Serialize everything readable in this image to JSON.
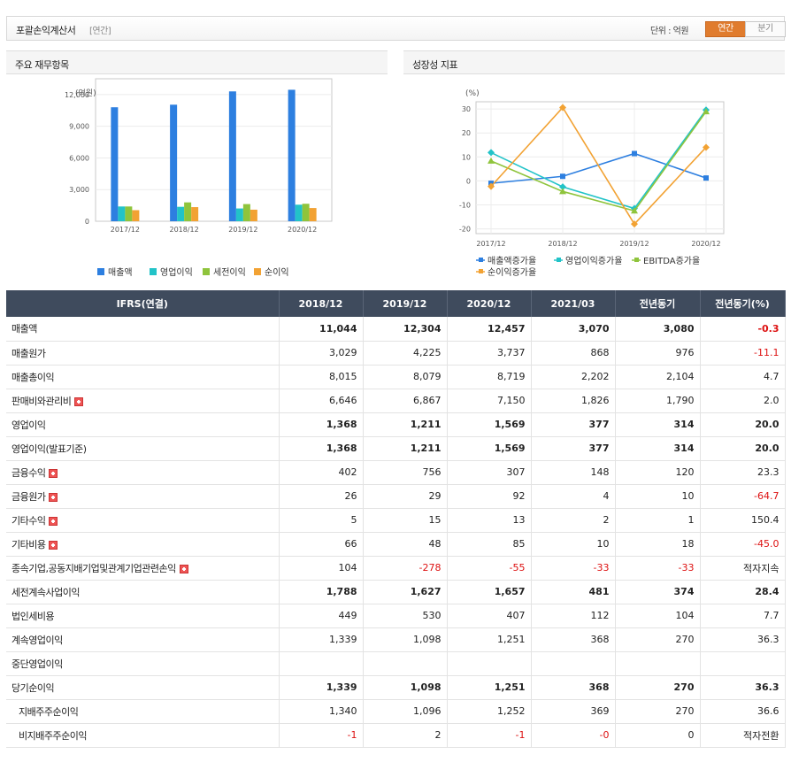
{
  "header": {
    "title": "포괄손익계산서",
    "subtitle": "[연간]",
    "unit_label": "단위 : 억원",
    "tab_annual": "연간",
    "tab_quarter": "분기"
  },
  "charts": {
    "left_title": "주요 재무항목",
    "right_title": "성장성 지표"
  },
  "chart_data": [
    {
      "type": "bar",
      "ylabel": "(억원)",
      "categories": [
        "2017/12",
        "2018/12",
        "2019/12",
        "2020/12"
      ],
      "y_ticks": [
        "0",
        "3,000",
        "6,000",
        "9,000",
        "12,000"
      ],
      "ylim": [
        0,
        13500
      ],
      "series": [
        {
          "name": "매출액",
          "color": "#2d7fe0",
          "values": [
            10800,
            11044,
            12304,
            12457
          ]
        },
        {
          "name": "영업이익",
          "color": "#22c3c8",
          "values": [
            1400,
            1368,
            1211,
            1569
          ]
        },
        {
          "name": "세전이익",
          "color": "#8fc43c",
          "values": [
            1400,
            1788,
            1627,
            1657
          ]
        },
        {
          "name": "순이익",
          "color": "#f2a233",
          "values": [
            1050,
            1339,
            1098,
            1251
          ]
        }
      ],
      "legend": "bottom"
    },
    {
      "type": "line",
      "ylabel": "(%)",
      "categories": [
        "2017/12",
        "2018/12",
        "2019/12",
        "2020/12"
      ],
      "y_ticks": [
        "-20",
        "-10",
        "0",
        "10",
        "20",
        "30"
      ],
      "ylim": [
        -22,
        33
      ],
      "series": [
        {
          "name": "매출액증가율",
          "color": "#2d7fe0",
          "marker": "square",
          "values": [
            -1,
            1.9,
            11.4,
            1.2
          ]
        },
        {
          "name": "영업이익증가율",
          "color": "#22c3c8",
          "marker": "diamond",
          "values": [
            11.8,
            -2.5,
            -11.5,
            29.6
          ]
        },
        {
          "name": "EBITDA증가율",
          "color": "#8fc43c",
          "marker": "triangle",
          "values": [
            8.3,
            -4.4,
            -12.5,
            28.9
          ]
        },
        {
          "name": "순이익증가율",
          "color": "#f2a233",
          "marker": "diamond",
          "values": [
            -2.3,
            30.6,
            -18.0,
            14.0
          ]
        }
      ],
      "legend": "bottom"
    }
  ],
  "table": {
    "columns": [
      "IFRS(연결)",
      "2018/12",
      "2019/12",
      "2020/12",
      "2021/03",
      "전년동기",
      "전년동기(%)"
    ],
    "rows": [
      {
        "label": "매출액",
        "values": [
          "11,044",
          "12,304",
          "12,457",
          "3,070",
          "3,080",
          "-0.3"
        ],
        "bold": true,
        "expand": false,
        "indent": false
      },
      {
        "label": "매출원가",
        "values": [
          "3,029",
          "4,225",
          "3,737",
          "868",
          "976",
          "-11.1"
        ],
        "bold": false,
        "expand": false,
        "indent": false
      },
      {
        "label": "매출총이익",
        "values": [
          "8,015",
          "8,079",
          "8,719",
          "2,202",
          "2,104",
          "4.7"
        ],
        "bold": false,
        "expand": false,
        "indent": false
      },
      {
        "label": "판매비와관리비",
        "values": [
          "6,646",
          "6,867",
          "7,150",
          "1,826",
          "1,790",
          "2.0"
        ],
        "bold": false,
        "expand": true,
        "indent": false
      },
      {
        "label": "영업이익",
        "values": [
          "1,368",
          "1,211",
          "1,569",
          "377",
          "314",
          "20.0"
        ],
        "bold": true,
        "expand": false,
        "indent": false
      },
      {
        "label": "영업이익(발표기준)",
        "values": [
          "1,368",
          "1,211",
          "1,569",
          "377",
          "314",
          "20.0"
        ],
        "bold": true,
        "expand": false,
        "indent": false
      },
      {
        "label": "금융수익",
        "values": [
          "402",
          "756",
          "307",
          "148",
          "120",
          "23.3"
        ],
        "bold": false,
        "expand": true,
        "indent": false
      },
      {
        "label": "금융원가",
        "values": [
          "26",
          "29",
          "92",
          "4",
          "10",
          "-64.7"
        ],
        "bold": false,
        "expand": true,
        "indent": false
      },
      {
        "label": "기타수익",
        "values": [
          "5",
          "15",
          "13",
          "2",
          "1",
          "150.4"
        ],
        "bold": false,
        "expand": true,
        "indent": false
      },
      {
        "label": "기타비용",
        "values": [
          "66",
          "48",
          "85",
          "10",
          "18",
          "-45.0"
        ],
        "bold": false,
        "expand": true,
        "indent": false
      },
      {
        "label": "종속기업,공동지배기업및관계기업관련손익",
        "values": [
          "104",
          "-278",
          "-55",
          "-33",
          "-33",
          "적자지속"
        ],
        "bold": false,
        "expand": true,
        "indent": false
      },
      {
        "label": "세전계속사업이익",
        "values": [
          "1,788",
          "1,627",
          "1,657",
          "481",
          "374",
          "28.4"
        ],
        "bold": true,
        "expand": false,
        "indent": false
      },
      {
        "label": "법인세비용",
        "values": [
          "449",
          "530",
          "407",
          "112",
          "104",
          "7.7"
        ],
        "bold": false,
        "expand": false,
        "indent": false
      },
      {
        "label": "계속영업이익",
        "values": [
          "1,339",
          "1,098",
          "1,251",
          "368",
          "270",
          "36.3"
        ],
        "bold": false,
        "expand": false,
        "indent": false
      },
      {
        "label": "중단영업이익",
        "values": [
          "",
          "",
          "",
          "",
          "",
          ""
        ],
        "bold": false,
        "expand": false,
        "indent": false
      },
      {
        "label": "당기순이익",
        "values": [
          "1,339",
          "1,098",
          "1,251",
          "368",
          "270",
          "36.3"
        ],
        "bold": true,
        "expand": false,
        "indent": false
      },
      {
        "label": "지배주주순이익",
        "values": [
          "1,340",
          "1,096",
          "1,252",
          "369",
          "270",
          "36.6"
        ],
        "bold": false,
        "expand": false,
        "indent": true
      },
      {
        "label": "비지배주주순이익",
        "values": [
          "-1",
          "2",
          "-1",
          "-0",
          "0",
          "적자전환"
        ],
        "bold": false,
        "expand": false,
        "indent": true
      }
    ]
  }
}
